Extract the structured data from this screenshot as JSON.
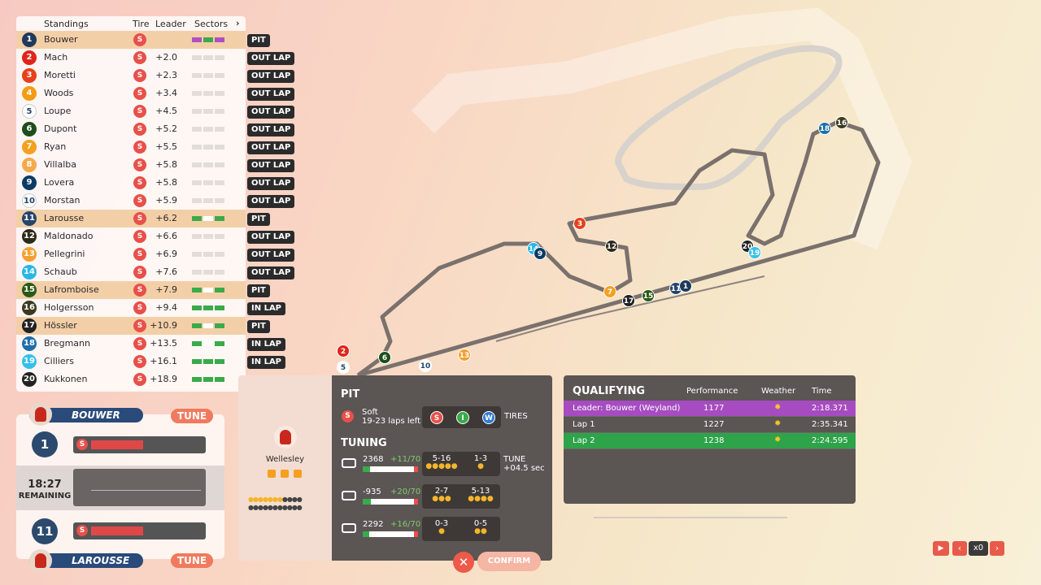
{
  "standings": {
    "headers": [
      "Standings",
      "Tire",
      "Leader",
      "Sectors"
    ],
    "rows": [
      {
        "pos": "1",
        "name": "Bouwer",
        "tire": "S",
        "status": "PIT",
        "color": "#1f3a5a",
        "sectors": [
          "#b04fc4",
          "#3aaa4a",
          "#b04fc4"
        ]
      },
      {
        "pos": "2",
        "name": "Mach",
        "tire": "S",
        "gap": "+2.0",
        "status": "OUT LAP",
        "color": "#e0251b",
        "sectors": [
          "#e2ddd8",
          "#e2ddd8",
          "#e2ddd8"
        ]
      },
      {
        "pos": "3",
        "name": "Moretti",
        "tire": "S",
        "gap": "+2.3",
        "status": "OUT LAP",
        "color": "#e8401c",
        "sectors": [
          "#e2ddd8",
          "#e2ddd8",
          "#e2ddd8"
        ]
      },
      {
        "pos": "4",
        "name": "Woods",
        "tire": "S",
        "gap": "+3.4",
        "status": "OUT LAP",
        "color": "#f39c12",
        "sectors": [
          "#e2ddd8",
          "#e2ddd8",
          "#e2ddd8"
        ]
      },
      {
        "pos": "5",
        "name": "Loupe",
        "tire": "S",
        "gap": "+4.5",
        "status": "OUT LAP",
        "color": "#ffffff",
        "sectors": [
          "#e2ddd8",
          "#e2ddd8",
          "#e2ddd8"
        ]
      },
      {
        "pos": "6",
        "name": "Dupont",
        "tire": "S",
        "gap": "+5.2",
        "status": "OUT LAP",
        "color": "#1e4d1e",
        "sectors": [
          "#e2ddd8",
          "#e2ddd8",
          "#e2ddd8"
        ]
      },
      {
        "pos": "7",
        "name": "Ryan",
        "tire": "S",
        "gap": "+5.5",
        "status": "OUT LAP",
        "color": "#f5a020",
        "sectors": [
          "#e2ddd8",
          "#e2ddd8",
          "#e2ddd8"
        ]
      },
      {
        "pos": "8",
        "name": "Villalba",
        "tire": "S",
        "gap": "+5.8",
        "status": "OUT LAP",
        "color": "#f6a94a",
        "sectors": [
          "#e2ddd8",
          "#e2ddd8",
          "#e2ddd8"
        ]
      },
      {
        "pos": "9",
        "name": "Lovera",
        "tire": "S",
        "gap": "+5.8",
        "status": "OUT LAP",
        "color": "#0d3b66",
        "sectors": [
          "#e2ddd8",
          "#e2ddd8",
          "#e2ddd8"
        ]
      },
      {
        "pos": "10",
        "name": "Morstan",
        "tire": "S",
        "gap": "+5.9",
        "status": "OUT LAP",
        "color": "#ffffff",
        "sectors": [
          "#e2ddd8",
          "#e2ddd8",
          "#e2ddd8"
        ]
      },
      {
        "pos": "11",
        "name": "Larousse",
        "tire": "S",
        "gap": "+6.2",
        "status": "PIT",
        "color": "#24456b",
        "sectors": [
          "#3aaa4a",
          "#ffffff",
          "#3aaa4a"
        ]
      },
      {
        "pos": "12",
        "name": "Maldonado",
        "tire": "S",
        "gap": "+6.6",
        "status": "OUT LAP",
        "color": "#2d2a1a",
        "sectors": [
          "#e2ddd8",
          "#e2ddd8",
          "#e2ddd8"
        ]
      },
      {
        "pos": "13",
        "name": "Pellegrini",
        "tire": "S",
        "gap": "+6.9",
        "status": "OUT LAP",
        "color": "#f5a030",
        "sectors": [
          "#e2ddd8",
          "#e2ddd8",
          "#e2ddd8"
        ]
      },
      {
        "pos": "14",
        "name": "Schaub",
        "tire": "S",
        "gap": "+7.6",
        "status": "OUT LAP",
        "color": "#29b6e8",
        "sectors": [
          "#e2ddd8",
          "#e2ddd8",
          "#e2ddd8"
        ]
      },
      {
        "pos": "15",
        "name": "Lafromboise",
        "tire": "S",
        "gap": "+7.9",
        "status": "PIT",
        "color": "#2a5a15",
        "sectors": [
          "#3aaa4a",
          "#ffffff",
          "#3aaa4a"
        ]
      },
      {
        "pos": "16",
        "name": "Holgersson",
        "tire": "S",
        "gap": "+9.4",
        "status": "IN LAP",
        "color": "#3a3a20",
        "sectors": [
          "#3aaa4a",
          "#3aaa4a",
          "#3aaa4a"
        ]
      },
      {
        "pos": "17",
        "name": "Hössler",
        "tire": "S",
        "gap": "+10.9",
        "status": "PIT",
        "color": "#222222",
        "sectors": [
          "#3aaa4a",
          "#ffffff",
          "#3aaa4a"
        ]
      },
      {
        "pos": "18",
        "name": "Bregmann",
        "tire": "S",
        "gap": "+13.5",
        "status": "IN LAP",
        "color": "#1e6fa8",
        "sectors": [
          "#3aaa4a",
          "#ffffff",
          "#3aaa4a"
        ]
      },
      {
        "pos": "19",
        "name": "Cilliers",
        "tire": "S",
        "gap": "+16.1",
        "status": "IN LAP",
        "color": "#35c0ea",
        "sectors": [
          "#3aaa4a",
          "#3aaa4a",
          "#3aaa4a"
        ]
      },
      {
        "pos": "20",
        "name": "Kukkonen",
        "tire": "S",
        "gap": "+18.9",
        "color": "#222222",
        "sectors": [
          "#3aaa4a",
          "#3aaa4a",
          "#3aaa4a"
        ]
      }
    ]
  },
  "driver_panel": {
    "top": {
      "name": "BOUWER",
      "pos": "1",
      "tire": "S",
      "button": "TUNE"
    },
    "bottom": {
      "name": "LAROUSSE",
      "pos": "11",
      "tire": "S",
      "button": "TUNE"
    },
    "clock": "18:27",
    "clock_label": "REMAINING"
  },
  "pit": {
    "driver": "Wellesley",
    "title": "PIT",
    "tire": "S",
    "tire_name": "Soft",
    "tire_laps": "19-23 laps left",
    "tire_options": [
      "S",
      "I",
      "W"
    ],
    "tires_label": "TIRES",
    "tuning_title": "TUNING",
    "tuning": [
      {
        "value": "2368",
        "delta": "+11/70",
        "ranges": [
          "5-16",
          "1-3"
        ]
      },
      {
        "value": "-935",
        "delta": "+20/70",
        "ranges": [
          "2-7",
          "5-13"
        ]
      },
      {
        "value": "2292",
        "delta": "+16/70",
        "ranges": [
          "0-3",
          "0-5"
        ]
      }
    ],
    "tune_label": "TUNE",
    "tune_time": "+04.5 sec",
    "confirm": "CONFIRM"
  },
  "qualifying": {
    "title": "QUALIFYING",
    "headers": [
      "Performance",
      "Weather",
      "Time"
    ],
    "rows": [
      {
        "label": "Leader: Bouwer (Weyland)",
        "performance": "1177",
        "time": "2:18.371"
      },
      {
        "label": "Lap 1",
        "performance": "1227",
        "time": "2:35.341"
      },
      {
        "label": "Lap 2",
        "performance": "1238",
        "time": "2:24.595"
      }
    ]
  },
  "controls": {
    "speed": "x0"
  }
}
